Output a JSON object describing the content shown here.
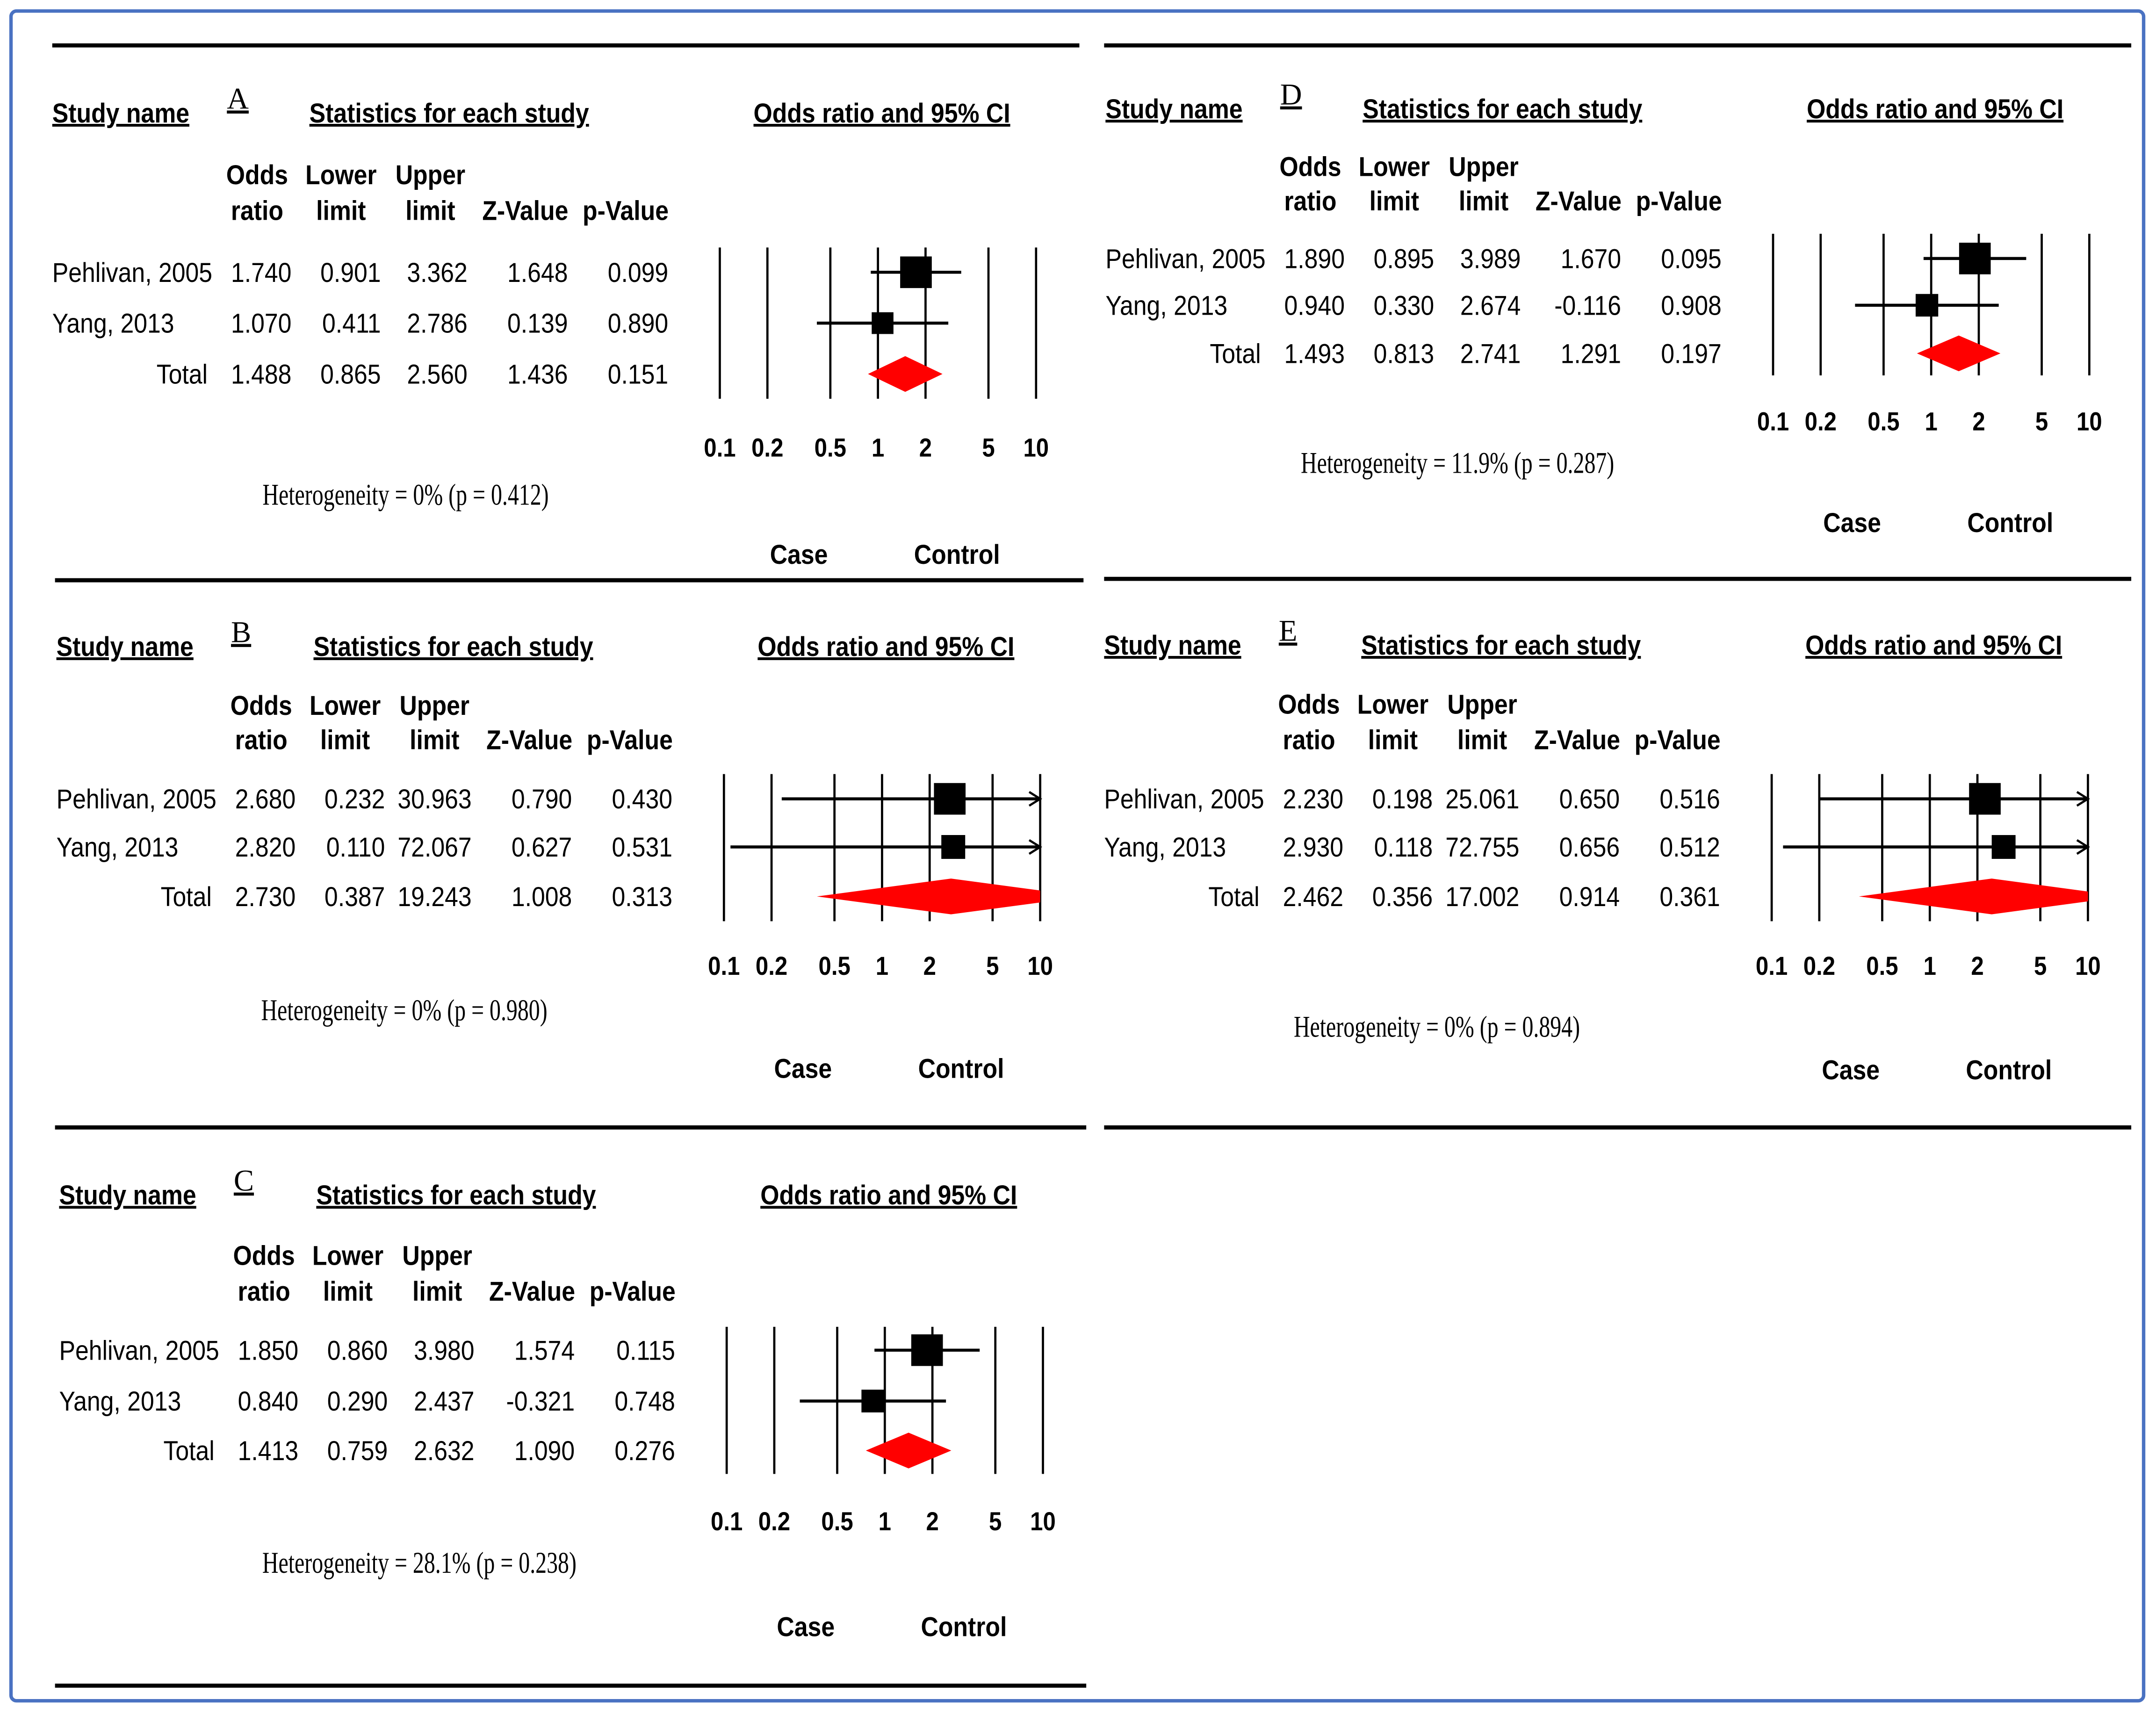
{
  "colors": {
    "background": "#FFFFFF",
    "text": "#000000",
    "marks": "#000000",
    "summary_diamond": "#FF0000",
    "frame": "#4A72C2",
    "divider": "#000000"
  },
  "chart_data": [
    {
      "type": "scatter",
      "panel_label": "A",
      "study_header": "Study name",
      "stats_header": "Statistics for each study",
      "title": "Odds ratio and 95% CI",
      "columns": [
        {
          "top": "Odds",
          "bottom": "ratio"
        },
        {
          "top": "Lower",
          "bottom": "limit"
        },
        {
          "top": "Upper",
          "bottom": "limit"
        },
        {
          "bottom": "Z-Value"
        },
        {
          "bottom": "p-Value"
        }
      ],
      "studies": [
        {
          "name": "Pehlivan, 2005",
          "values": [
            "1.740",
            "0.901",
            "3.362",
            "1.648",
            "0.099"
          ]
        },
        {
          "name": "Yang, 2013",
          "values": [
            "1.070",
            "0.411",
            "2.786",
            "0.139",
            "0.890"
          ]
        }
      ],
      "total": {
        "name": "Total",
        "values": [
          "1.488",
          "0.865",
          "2.560",
          "1.436",
          "0.151"
        ]
      },
      "heterogeneity": "Heterogeneity = 0% (p = 0.412)",
      "x_axis": {
        "xlim": [
          0.1,
          10
        ],
        "ticks": [
          "0.1",
          "0.2",
          "0.5",
          "1",
          "2",
          "5",
          "10"
        ]
      },
      "xlabel_left": "Case",
      "xlabel_right": "Control"
    },
    {
      "type": "scatter",
      "panel_label": "B",
      "study_header": "Study name",
      "stats_header": "Statistics for each study",
      "title": "Odds ratio and 95% CI",
      "columns": [
        {
          "top": "Odds",
          "bottom": "ratio"
        },
        {
          "top": "Lower",
          "bottom": "limit"
        },
        {
          "top": "Upper",
          "bottom": "limit"
        },
        {
          "bottom": "Z-Value"
        },
        {
          "bottom": "p-Value"
        }
      ],
      "studies": [
        {
          "name": "Pehlivan, 2005",
          "values": [
            "2.680",
            "0.232",
            "30.963",
            "0.790",
            "0.430"
          ]
        },
        {
          "name": "Yang, 2013",
          "values": [
            "2.820",
            "0.110",
            "72.067",
            "0.627",
            "0.531"
          ]
        }
      ],
      "total": {
        "name": "Total",
        "values": [
          "2.730",
          "0.387",
          "19.243",
          "1.008",
          "0.313"
        ]
      },
      "heterogeneity": "Heterogeneity = 0% (p = 0.980)",
      "x_axis": {
        "xlim": [
          0.1,
          10
        ],
        "ticks": [
          "0.1",
          "0.2",
          "0.5",
          "1",
          "2",
          "5",
          "10"
        ]
      },
      "xlabel_left": "Case",
      "xlabel_right": "Control"
    },
    {
      "type": "scatter",
      "panel_label": "C",
      "study_header": "Study name",
      "stats_header": "Statistics for each study",
      "title": "Odds ratio and 95% CI",
      "columns": [
        {
          "top": "Odds",
          "bottom": "ratio"
        },
        {
          "top": "Lower",
          "bottom": "limit"
        },
        {
          "top": "Upper",
          "bottom": "limit"
        },
        {
          "bottom": "Z-Value"
        },
        {
          "bottom": "p-Value"
        }
      ],
      "studies": [
        {
          "name": "Pehlivan, 2005",
          "values": [
            "1.850",
            "0.860",
            "3.980",
            "1.574",
            "0.115"
          ]
        },
        {
          "name": "Yang, 2013",
          "values": [
            "0.840",
            "0.290",
            "2.437",
            "-0.321",
            "0.748"
          ]
        }
      ],
      "total": {
        "name": "Total",
        "values": [
          "1.413",
          "0.759",
          "2.632",
          "1.090",
          "0.276"
        ]
      },
      "heterogeneity": "Heterogeneity = 28.1% (p = 0.238)",
      "x_axis": {
        "xlim": [
          0.1,
          10
        ],
        "ticks": [
          "0.1",
          "0.2",
          "0.5",
          "1",
          "2",
          "5",
          "10"
        ]
      },
      "xlabel_left": "Case",
      "xlabel_right": "Control"
    },
    {
      "type": "scatter",
      "panel_label": "D",
      "study_header": "Study name",
      "stats_header": "Statistics for each study",
      "title": "Odds ratio and 95% CI",
      "columns": [
        {
          "top": "Odds",
          "bottom": "ratio"
        },
        {
          "top": "Lower",
          "bottom": "limit"
        },
        {
          "top": "Upper",
          "bottom": "limit"
        },
        {
          "bottom": "Z-Value"
        },
        {
          "bottom": "p-Value"
        }
      ],
      "studies": [
        {
          "name": "Pehlivan, 2005",
          "values": [
            "1.890",
            "0.895",
            "3.989",
            "1.670",
            "0.095"
          ]
        },
        {
          "name": "Yang, 2013",
          "values": [
            "0.940",
            "0.330",
            "2.674",
            "-0.116",
            "0.908"
          ]
        }
      ],
      "total": {
        "name": "Total",
        "values": [
          "1.493",
          "0.813",
          "2.741",
          "1.291",
          "0.197"
        ]
      },
      "heterogeneity": "Heterogeneity = 11.9% (p = 0.287)",
      "x_axis": {
        "xlim": [
          0.1,
          10
        ],
        "ticks": [
          "0.1",
          "0.2",
          "0.5",
          "1",
          "2",
          "5",
          "10"
        ]
      },
      "xlabel_left": "Case",
      "xlabel_right": "Control"
    },
    {
      "type": "scatter",
      "panel_label": "E",
      "study_header": "Study name",
      "stats_header": "Statistics for each study",
      "title": "Odds ratio and 95% CI",
      "columns": [
        {
          "top": "Odds",
          "bottom": "ratio"
        },
        {
          "top": "Lower",
          "bottom": "limit"
        },
        {
          "top": "Upper",
          "bottom": "limit"
        },
        {
          "bottom": "Z-Value"
        },
        {
          "bottom": "p-Value"
        }
      ],
      "studies": [
        {
          "name": "Pehlivan, 2005",
          "values": [
            "2.230",
            "0.198",
            "25.061",
            "0.650",
            "0.516"
          ]
        },
        {
          "name": "Yang, 2013",
          "values": [
            "2.930",
            "0.118",
            "72.755",
            "0.656",
            "0.512"
          ]
        }
      ],
      "total": {
        "name": "Total",
        "values": [
          "2.462",
          "0.356",
          "17.002",
          "0.914",
          "0.361"
        ]
      },
      "heterogeneity": "Heterogeneity = 0% (p = 0.894)",
      "x_axis": {
        "xlim": [
          0.1,
          10
        ],
        "ticks": [
          "0.1",
          "0.2",
          "0.5",
          "1",
          "2",
          "5",
          "10"
        ]
      },
      "xlabel_left": "Case",
      "xlabel_right": "Control"
    }
  ]
}
